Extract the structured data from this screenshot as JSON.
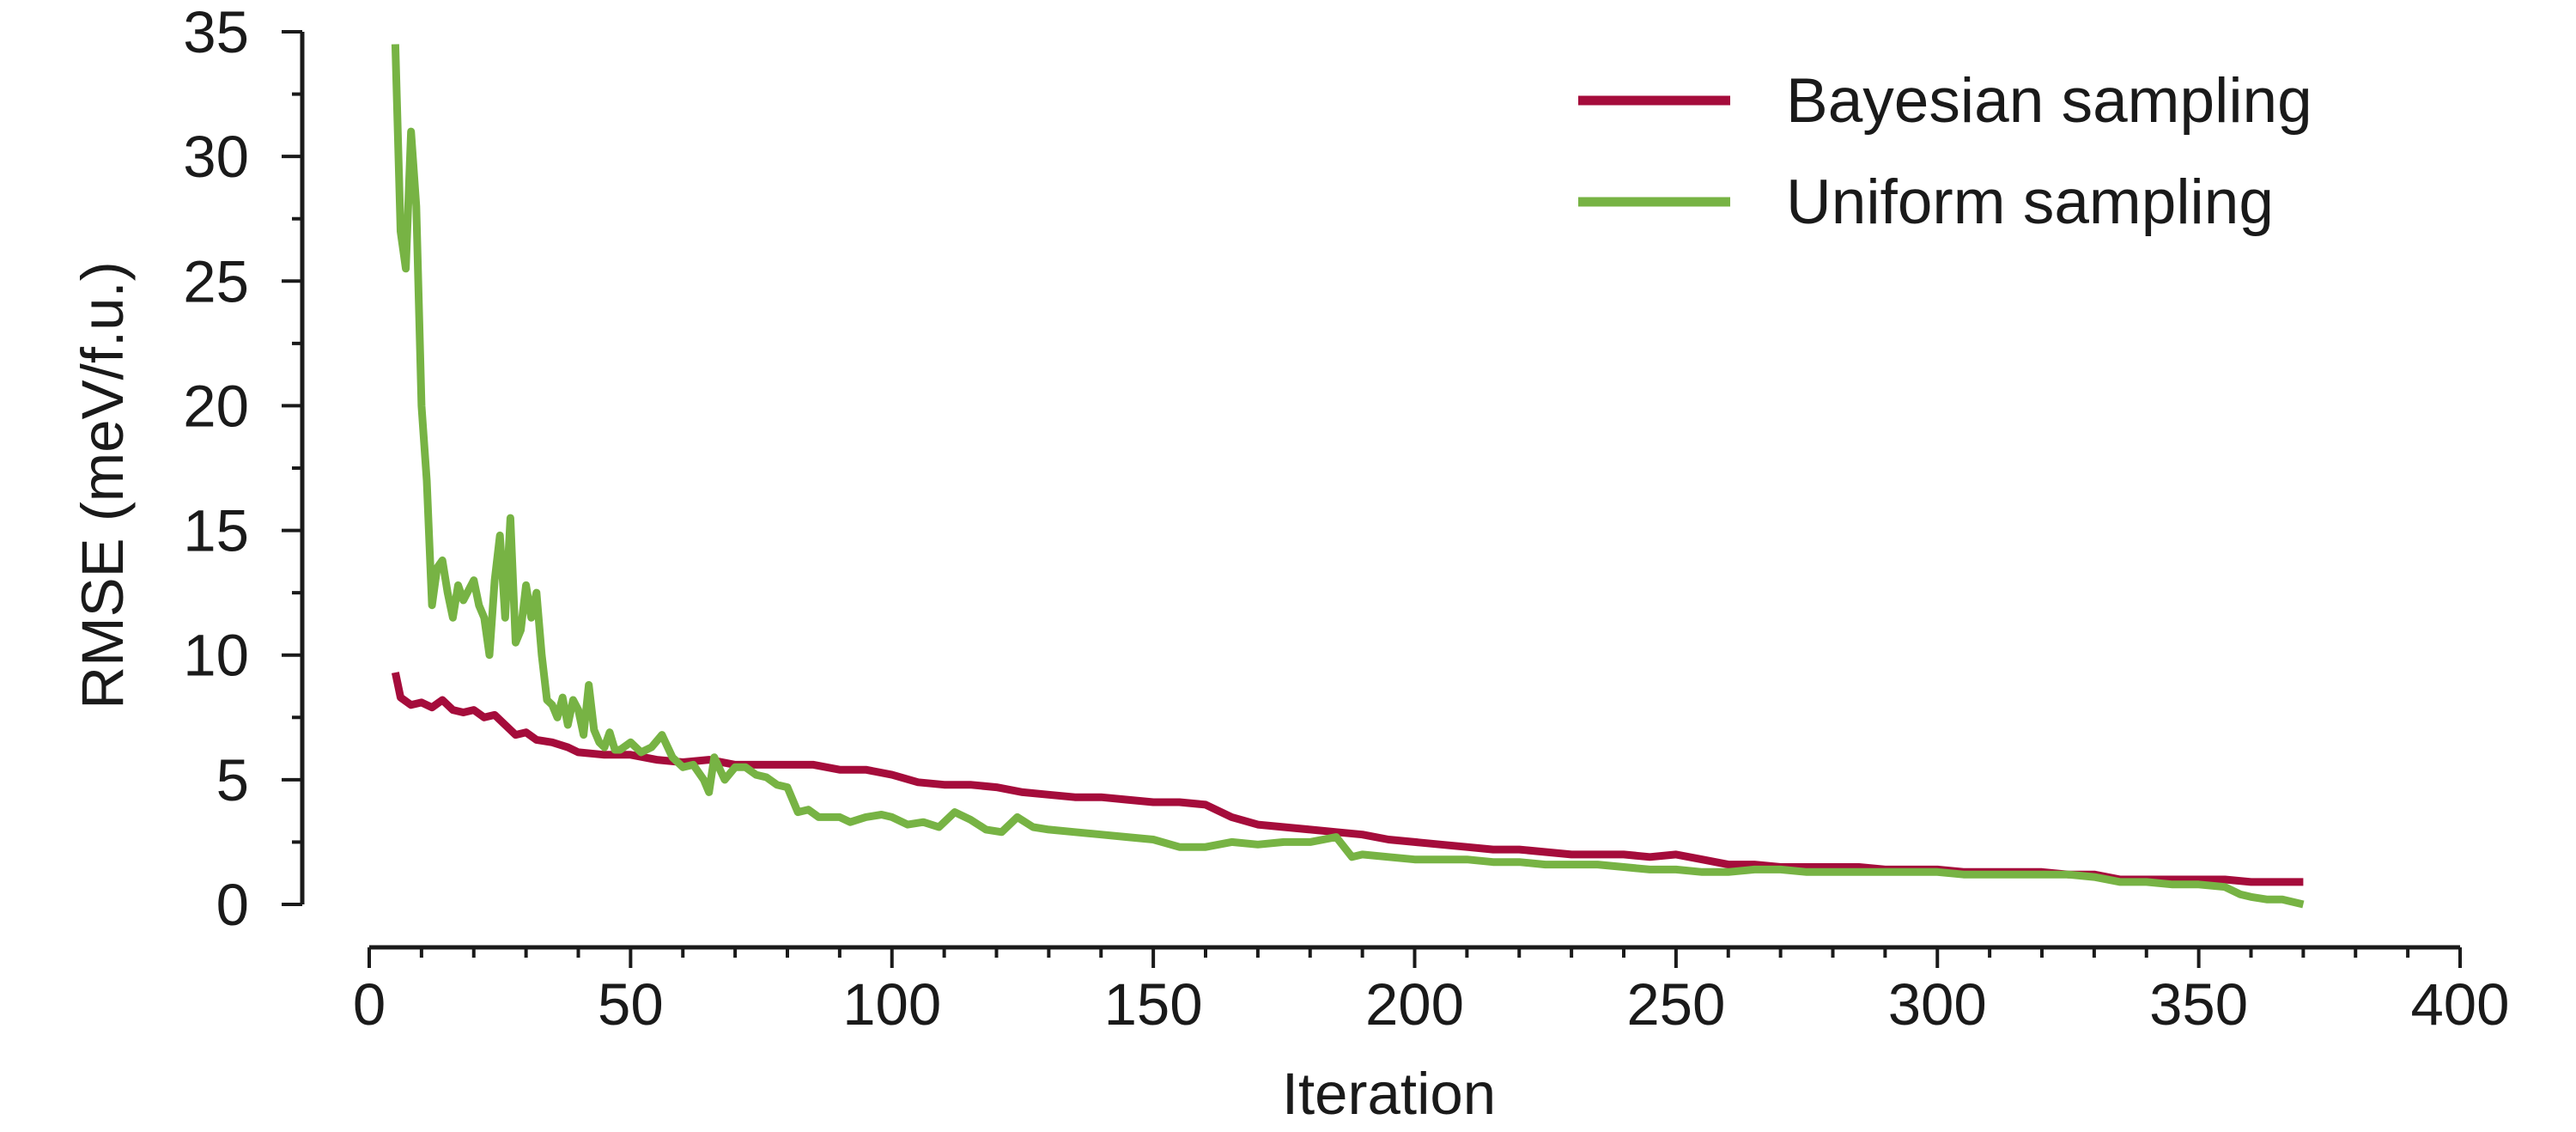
{
  "chart_data": {
    "type": "line",
    "title": "",
    "xlabel": "Iteration",
    "ylabel": "RMSE (meV/f.u.)",
    "xlim": [
      0,
      400
    ],
    "ylim": [
      0,
      35
    ],
    "x_ticks": [
      0,
      50,
      100,
      150,
      200,
      250,
      300,
      350,
      400
    ],
    "y_ticks": [
      0,
      5,
      10,
      15,
      20,
      25,
      30,
      35
    ],
    "x_minor_step": 10,
    "y_minor_step": 2.5,
    "grid": false,
    "legend_position": "top-right",
    "series": [
      {
        "name": "Bayesian sampling",
        "color": "#A50C3B",
        "points": [
          [
            5,
            9.3
          ],
          [
            6,
            8.3
          ],
          [
            8,
            8.0
          ],
          [
            10,
            8.1
          ],
          [
            12,
            7.9
          ],
          [
            14,
            8.2
          ],
          [
            16,
            7.8
          ],
          [
            18,
            7.7
          ],
          [
            20,
            7.8
          ],
          [
            22,
            7.5
          ],
          [
            24,
            7.6
          ],
          [
            26,
            7.2
          ],
          [
            28,
            6.8
          ],
          [
            30,
            6.9
          ],
          [
            32,
            6.6
          ],
          [
            35,
            6.5
          ],
          [
            38,
            6.3
          ],
          [
            40,
            6.1
          ],
          [
            45,
            6.0
          ],
          [
            50,
            6.0
          ],
          [
            55,
            5.8
          ],
          [
            60,
            5.7
          ],
          [
            65,
            5.8
          ],
          [
            70,
            5.6
          ],
          [
            75,
            5.6
          ],
          [
            80,
            5.6
          ],
          [
            85,
            5.6
          ],
          [
            90,
            5.4
          ],
          [
            95,
            5.4
          ],
          [
            100,
            5.2
          ],
          [
            105,
            4.9
          ],
          [
            110,
            4.8
          ],
          [
            115,
            4.8
          ],
          [
            120,
            4.7
          ],
          [
            125,
            4.5
          ],
          [
            130,
            4.4
          ],
          [
            135,
            4.3
          ],
          [
            140,
            4.3
          ],
          [
            145,
            4.2
          ],
          [
            150,
            4.1
          ],
          [
            155,
            4.1
          ],
          [
            160,
            4.0
          ],
          [
            165,
            3.5
          ],
          [
            170,
            3.2
          ],
          [
            175,
            3.1
          ],
          [
            180,
            3.0
          ],
          [
            185,
            2.9
          ],
          [
            190,
            2.8
          ],
          [
            195,
            2.6
          ],
          [
            200,
            2.5
          ],
          [
            205,
            2.4
          ],
          [
            210,
            2.3
          ],
          [
            215,
            2.2
          ],
          [
            220,
            2.2
          ],
          [
            225,
            2.1
          ],
          [
            230,
            2.0
          ],
          [
            235,
            2.0
          ],
          [
            240,
            2.0
          ],
          [
            245,
            1.9
          ],
          [
            250,
            2.0
          ],
          [
            255,
            1.8
          ],
          [
            260,
            1.6
          ],
          [
            265,
            1.6
          ],
          [
            270,
            1.5
          ],
          [
            275,
            1.5
          ],
          [
            280,
            1.5
          ],
          [
            285,
            1.5
          ],
          [
            290,
            1.4
          ],
          [
            295,
            1.4
          ],
          [
            300,
            1.4
          ],
          [
            305,
            1.3
          ],
          [
            310,
            1.3
          ],
          [
            315,
            1.3
          ],
          [
            320,
            1.3
          ],
          [
            325,
            1.2
          ],
          [
            330,
            1.2
          ],
          [
            335,
            1.0
          ],
          [
            340,
            1.0
          ],
          [
            345,
            1.0
          ],
          [
            350,
            1.0
          ],
          [
            355,
            1.0
          ],
          [
            360,
            0.9
          ],
          [
            365,
            0.9
          ],
          [
            370,
            0.9
          ]
        ]
      },
      {
        "name": "Uniform sampling",
        "color": "#77B344",
        "points": [
          [
            5,
            34.5
          ],
          [
            6,
            27
          ],
          [
            7,
            25.5
          ],
          [
            8,
            31
          ],
          [
            9,
            28
          ],
          [
            10,
            20
          ],
          [
            11,
            17
          ],
          [
            12,
            12
          ],
          [
            13,
            13.5
          ],
          [
            14,
            13.8
          ],
          [
            15,
            12.5
          ],
          [
            16,
            11.5
          ],
          [
            17,
            12.8
          ],
          [
            18,
            12.2
          ],
          [
            20,
            13.0
          ],
          [
            21,
            12.0
          ],
          [
            22,
            11.5
          ],
          [
            23,
            10.0
          ],
          [
            24,
            13
          ],
          [
            25,
            14.8
          ],
          [
            26,
            11.5
          ],
          [
            27,
            15.5
          ],
          [
            28,
            10.5
          ],
          [
            29,
            11
          ],
          [
            30,
            12.8
          ],
          [
            31,
            11.5
          ],
          [
            32,
            12.5
          ],
          [
            33,
            10
          ],
          [
            34,
            8.2
          ],
          [
            35,
            8.0
          ],
          [
            36,
            7.5
          ],
          [
            37,
            8.3
          ],
          [
            38,
            7.2
          ],
          [
            39,
            8.2
          ],
          [
            40,
            7.8
          ],
          [
            41,
            6.8
          ],
          [
            42,
            8.8
          ],
          [
            43,
            7.0
          ],
          [
            44,
            6.5
          ],
          [
            45,
            6.3
          ],
          [
            46,
            6.9
          ],
          [
            47,
            6.2
          ],
          [
            48,
            6.2
          ],
          [
            50,
            6.5
          ],
          [
            52,
            6.1
          ],
          [
            54,
            6.3
          ],
          [
            56,
            6.8
          ],
          [
            58,
            5.9
          ],
          [
            60,
            5.5
          ],
          [
            62,
            5.6
          ],
          [
            64,
            5.0
          ],
          [
            65,
            4.5
          ],
          [
            66,
            5.9
          ],
          [
            68,
            5.0
          ],
          [
            70,
            5.5
          ],
          [
            72,
            5.5
          ],
          [
            74,
            5.2
          ],
          [
            76,
            5.1
          ],
          [
            78,
            4.8
          ],
          [
            80,
            4.7
          ],
          [
            82,
            3.7
          ],
          [
            84,
            3.8
          ],
          [
            86,
            3.5
          ],
          [
            88,
            3.5
          ],
          [
            90,
            3.5
          ],
          [
            92,
            3.3
          ],
          [
            95,
            3.5
          ],
          [
            98,
            3.6
          ],
          [
            100,
            3.5
          ],
          [
            103,
            3.2
          ],
          [
            106,
            3.3
          ],
          [
            109,
            3.1
          ],
          [
            112,
            3.7
          ],
          [
            115,
            3.4
          ],
          [
            118,
            3.0
          ],
          [
            121,
            2.9
          ],
          [
            124,
            3.5
          ],
          [
            127,
            3.1
          ],
          [
            130,
            3.0
          ],
          [
            135,
            2.9
          ],
          [
            140,
            2.8
          ],
          [
            145,
            2.7
          ],
          [
            150,
            2.6
          ],
          [
            155,
            2.3
          ],
          [
            160,
            2.3
          ],
          [
            165,
            2.5
          ],
          [
            170,
            2.4
          ],
          [
            175,
            2.5
          ],
          [
            180,
            2.5
          ],
          [
            185,
            2.7
          ],
          [
            188,
            1.9
          ],
          [
            190,
            2.0
          ],
          [
            195,
            1.9
          ],
          [
            200,
            1.8
          ],
          [
            205,
            1.8
          ],
          [
            210,
            1.8
          ],
          [
            215,
            1.7
          ],
          [
            220,
            1.7
          ],
          [
            225,
            1.6
          ],
          [
            230,
            1.6
          ],
          [
            235,
            1.6
          ],
          [
            240,
            1.5
          ],
          [
            245,
            1.4
          ],
          [
            250,
            1.4
          ],
          [
            255,
            1.3
          ],
          [
            260,
            1.3
          ],
          [
            265,
            1.4
          ],
          [
            270,
            1.4
          ],
          [
            275,
            1.3
          ],
          [
            280,
            1.3
          ],
          [
            285,
            1.3
          ],
          [
            290,
            1.3
          ],
          [
            295,
            1.3
          ],
          [
            300,
            1.3
          ],
          [
            305,
            1.2
          ],
          [
            310,
            1.2
          ],
          [
            315,
            1.2
          ],
          [
            320,
            1.2
          ],
          [
            325,
            1.2
          ],
          [
            330,
            1.1
          ],
          [
            335,
            0.9
          ],
          [
            340,
            0.9
          ],
          [
            345,
            0.8
          ],
          [
            350,
            0.8
          ],
          [
            355,
            0.7
          ],
          [
            358,
            0.4
          ],
          [
            360,
            0.3
          ],
          [
            363,
            0.2
          ],
          [
            366,
            0.2
          ],
          [
            368,
            0.1
          ],
          [
            370,
            0.0
          ]
        ]
      }
    ]
  }
}
